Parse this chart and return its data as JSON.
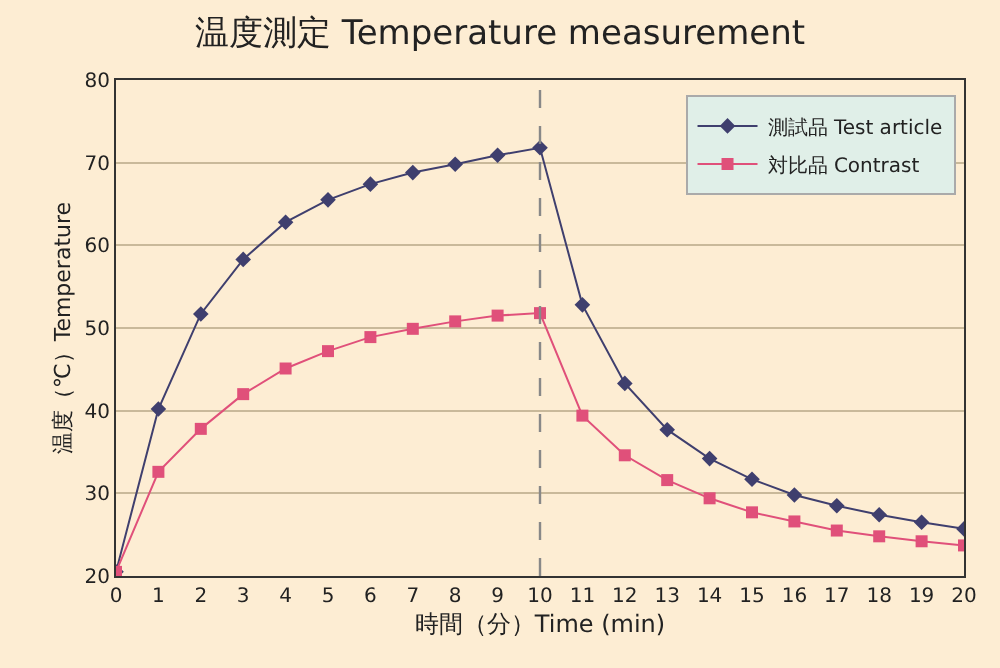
{
  "chart_data": {
    "type": "line",
    "title": "温度測定 Temperature measurement",
    "xlabel": "時間（分）Time (min)",
    "ylabel": "温度（℃）Temperature",
    "x": [
      0,
      1,
      2,
      3,
      4,
      5,
      6,
      7,
      8,
      9,
      10,
      11,
      12,
      13,
      14,
      15,
      16,
      17,
      18,
      19,
      20
    ],
    "series": [
      {
        "name": "測試品 Test article",
        "color": "#3f3f6e",
        "marker": "diamond",
        "values": [
          20.5,
          40.2,
          51.7,
          58.3,
          62.8,
          65.5,
          67.4,
          68.8,
          69.8,
          70.9,
          71.8,
          52.8,
          43.3,
          37.7,
          34.2,
          31.7,
          29.8,
          28.5,
          27.4,
          26.5,
          25.7
        ]
      },
      {
        "name": "対比品 Contrast",
        "color": "#e0507a",
        "marker": "square",
        "values": [
          20.5,
          32.6,
          37.8,
          42.0,
          45.1,
          47.2,
          48.9,
          49.9,
          50.8,
          51.5,
          51.8,
          39.4,
          34.6,
          31.6,
          29.4,
          27.7,
          26.6,
          25.5,
          24.8,
          24.2,
          23.7
        ]
      }
    ],
    "xlim": [
      0,
      20
    ],
    "xticks": [
      0,
      1,
      2,
      3,
      4,
      5,
      6,
      7,
      8,
      9,
      10,
      11,
      12,
      13,
      14,
      15,
      16,
      17,
      18,
      19,
      20
    ],
    "ylim": [
      20,
      80
    ],
    "yticks": [
      20,
      30,
      40,
      50,
      60,
      70,
      80
    ],
    "grid": "y",
    "legend": "top right",
    "ref_lines": [
      {
        "axis": "x",
        "value": 10,
        "color": "#888888",
        "line_style": "dashed"
      }
    ]
  }
}
